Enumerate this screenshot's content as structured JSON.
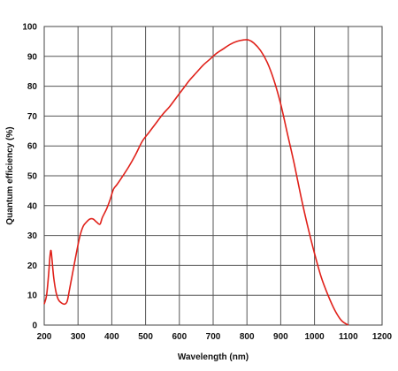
{
  "chart_data": {
    "type": "line",
    "title": "",
    "xlabel": "Wavelength (nm)",
    "ylabel": "Quantum efficiency (%)",
    "xlim": [
      200,
      1200
    ],
    "ylim": [
      0,
      100
    ],
    "x_ticks": [
      200,
      300,
      400,
      500,
      600,
      700,
      800,
      900,
      1000,
      1100,
      1200
    ],
    "y_ticks": [
      0,
      10,
      20,
      30,
      40,
      50,
      60,
      70,
      80,
      90,
      100
    ],
    "grid": true,
    "legend": "none",
    "series": [
      {
        "color": "#e0211a",
        "points": [
          [
            200,
            7
          ],
          [
            207,
            10
          ],
          [
            213,
            17
          ],
          [
            217,
            23
          ],
          [
            220,
            25
          ],
          [
            223,
            22
          ],
          [
            228,
            16
          ],
          [
            235,
            11
          ],
          [
            242,
            8.5
          ],
          [
            250,
            7.5
          ],
          [
            260,
            7
          ],
          [
            268,
            8
          ],
          [
            275,
            12
          ],
          [
            285,
            18
          ],
          [
            295,
            24
          ],
          [
            305,
            29.5
          ],
          [
            315,
            33
          ],
          [
            325,
            34.5
          ],
          [
            335,
            35.5
          ],
          [
            345,
            35.5
          ],
          [
            355,
            34.5
          ],
          [
            365,
            33.8
          ],
          [
            372,
            36
          ],
          [
            385,
            39
          ],
          [
            395,
            42
          ],
          [
            405,
            45.5
          ],
          [
            415,
            47
          ],
          [
            430,
            49.5
          ],
          [
            450,
            53
          ],
          [
            470,
            57
          ],
          [
            490,
            61.5
          ],
          [
            510,
            64.5
          ],
          [
            530,
            67.5
          ],
          [
            550,
            70.5
          ],
          [
            570,
            73
          ],
          [
            590,
            76
          ],
          [
            610,
            79
          ],
          [
            630,
            82
          ],
          [
            650,
            84.5
          ],
          [
            670,
            87
          ],
          [
            690,
            89
          ],
          [
            710,
            91
          ],
          [
            730,
            92.5
          ],
          [
            750,
            94
          ],
          [
            770,
            95
          ],
          [
            790,
            95.5
          ],
          [
            805,
            95.5
          ],
          [
            820,
            94.5
          ],
          [
            840,
            92
          ],
          [
            860,
            88
          ],
          [
            880,
            82
          ],
          [
            900,
            74
          ],
          [
            920,
            64
          ],
          [
            940,
            54
          ],
          [
            960,
            43
          ],
          [
            980,
            33
          ],
          [
            1000,
            24
          ],
          [
            1020,
            16
          ],
          [
            1040,
            10
          ],
          [
            1060,
            5
          ],
          [
            1080,
            1.5
          ],
          [
            1100,
            0
          ]
        ]
      }
    ]
  }
}
